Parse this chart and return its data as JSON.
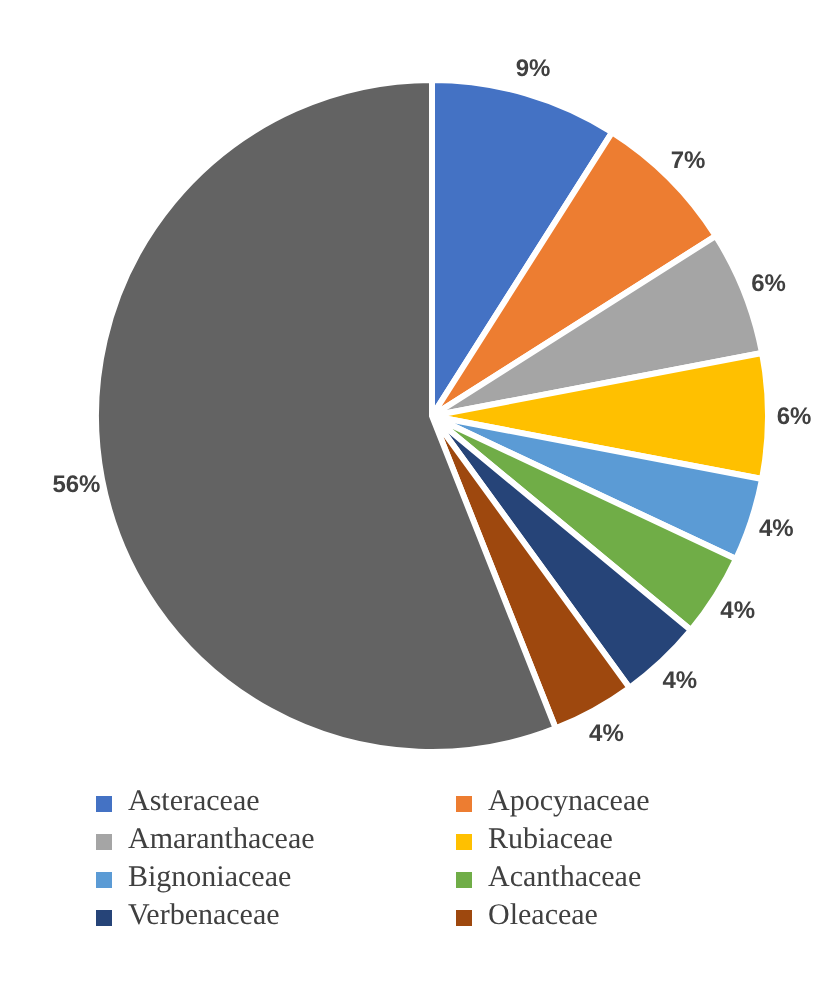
{
  "chart_data": {
    "type": "pie",
    "categories": [
      "Asteraceae",
      "Apocynaceae",
      "Amaranthaceae",
      "Rubiaceae",
      "Bignoniaceae",
      "Acanthaceae",
      "Verbenaceae",
      "Oleaceae",
      null
    ],
    "values": [
      9,
      7,
      6,
      6,
      4,
      4,
      4,
      4,
      56
    ],
    "value_labels": [
      "9%",
      "7%",
      "6%",
      "6%",
      "4%",
      "4%",
      "4%",
      "4%",
      "56%"
    ],
    "colors": [
      "#4472c4",
      "#ed7d31",
      "#a5a5a5",
      "#ffc000",
      "#5b9bd5",
      "#70ad47",
      "#264478",
      "#9e480e",
      "#636363"
    ],
    "legend": "bottom"
  }
}
